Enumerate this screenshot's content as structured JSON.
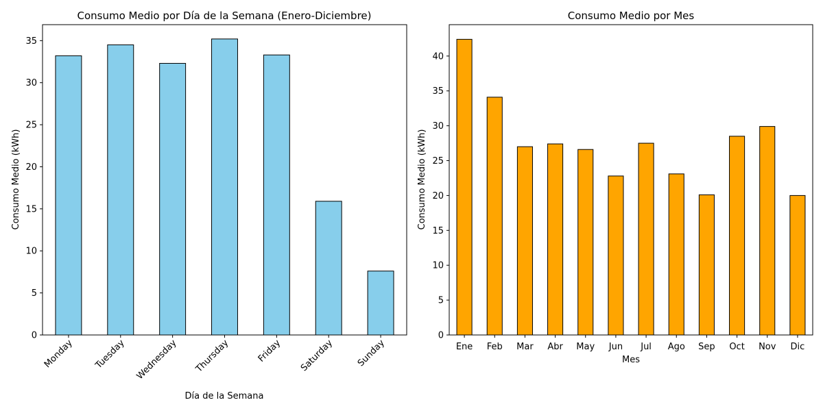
{
  "chart_data": [
    {
      "type": "bar",
      "title": "Consumo Medio por Día de la Semana (Enero-Diciembre)",
      "xlabel": "Día de la Semana",
      "ylabel": "Consumo Medio (kWh)",
      "categories": [
        "Monday",
        "Tuesday",
        "Wednesday",
        "Thursday",
        "Friday",
        "Saturday",
        "Sunday"
      ],
      "values": [
        33.2,
        34.5,
        32.3,
        35.2,
        33.3,
        15.9,
        7.6
      ],
      "ylim": [
        0,
        36.9
      ],
      "yticks": [
        0,
        5,
        10,
        15,
        20,
        25,
        30,
        35
      ],
      "xtick_rotation": 45,
      "bar_color": "#87CEEB",
      "edge_color": "#000000",
      "grid": false,
      "legend": "none"
    },
    {
      "type": "bar",
      "title": "Consumo Medio por Mes",
      "xlabel": "Mes",
      "ylabel": "Consumo Medio (kWh)",
      "categories": [
        "Ene",
        "Feb",
        "Mar",
        "Abr",
        "May",
        "Jun",
        "Jul",
        "Ago",
        "Sep",
        "Oct",
        "Nov",
        "Dic"
      ],
      "values": [
        42.4,
        34.1,
        27.0,
        27.4,
        26.6,
        22.8,
        27.5,
        23.1,
        20.1,
        28.5,
        29.9,
        20.0
      ],
      "ylim": [
        0,
        44.5
      ],
      "yticks": [
        0,
        5,
        10,
        15,
        20,
        25,
        30,
        35,
        40
      ],
      "xtick_rotation": 0,
      "bar_color": "#FFA500",
      "edge_color": "#000000",
      "grid": false,
      "legend": "none"
    }
  ]
}
